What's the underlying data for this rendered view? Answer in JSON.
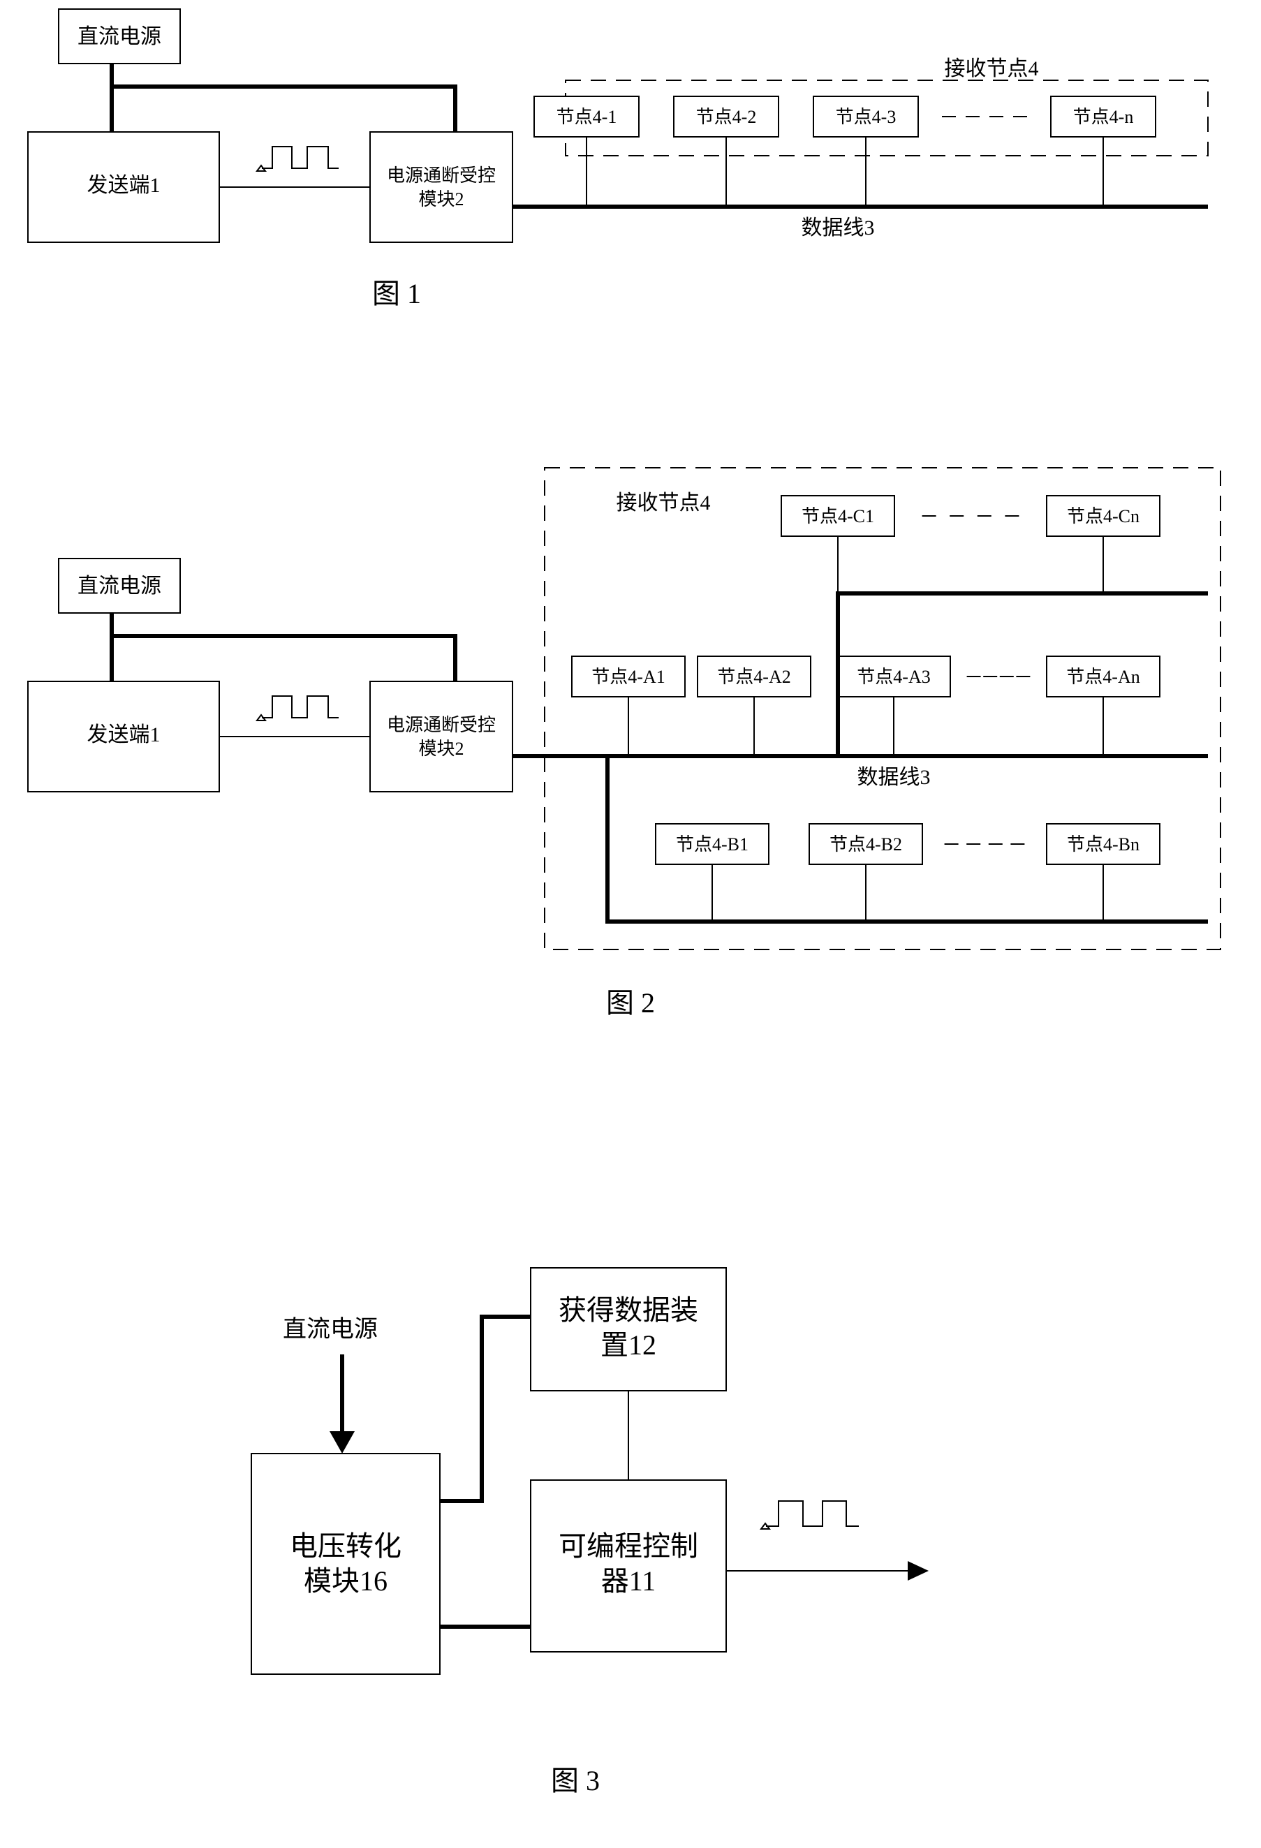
{
  "common": {
    "dc_power": "直流电源",
    "sender": "发送端1",
    "power_switch": "电源通断受控\n模块2",
    "data_line": "数据线3",
    "receiver_group": "接收节点4"
  },
  "fig1": {
    "caption": "图 1",
    "nodes": [
      "节点4-1",
      "节点4-2",
      "节点4-3",
      "节点4-n"
    ],
    "dashes_between_3_n": true
  },
  "fig2": {
    "caption": "图 2",
    "rowC": [
      "节点4-C1",
      "节点4-Cn"
    ],
    "rowA": [
      "节点4-A1",
      "节点4-A2",
      "节点4-A3",
      "节点4-An"
    ],
    "rowB": [
      "节点4-B1",
      "节点4-B2",
      "节点4-Bn"
    ]
  },
  "fig3": {
    "caption": "图 3",
    "dc_power_arrow_label": "直流电源",
    "vconv": "电压转化\n模块16",
    "data_dev": "获得数据装\n置12",
    "plc": "可编程控制\n器11"
  }
}
